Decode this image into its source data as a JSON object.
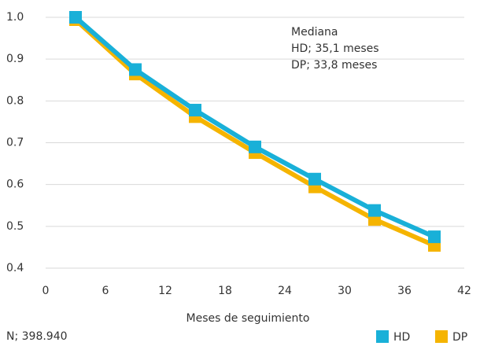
{
  "chart_data": {
    "type": "line",
    "x": [
      3,
      9,
      15,
      21,
      27,
      33,
      39
    ],
    "series": [
      {
        "name": "DP",
        "color": "#f5b400",
        "values": [
          1.0,
          0.87,
          0.768,
          0.682,
          0.6,
          0.522,
          0.46
        ]
      },
      {
        "name": "HD",
        "color": "#19b0d8",
        "values": [
          1.0,
          0.875,
          0.778,
          0.69,
          0.613,
          0.538,
          0.475
        ]
      }
    ],
    "xlim": [
      0,
      42
    ],
    "xticks": [
      0,
      6,
      12,
      18,
      24,
      30,
      36,
      42
    ],
    "ylim": [
      0.4,
      1.0
    ],
    "yticks": [
      0.4,
      0.5,
      0.6,
      0.7,
      0.8,
      0.9,
      {
        "value": 1.0,
        "label": "1.0"
      }
    ],
    "grid": true,
    "xlabel": "Meses de seguimiento",
    "annotations": [
      "Mediana",
      "HD; 35,1 meses",
      "DP; 33,8 meses"
    ],
    "footnote": "N; 398.940",
    "legend_order": [
      "HD",
      "DP"
    ]
  }
}
